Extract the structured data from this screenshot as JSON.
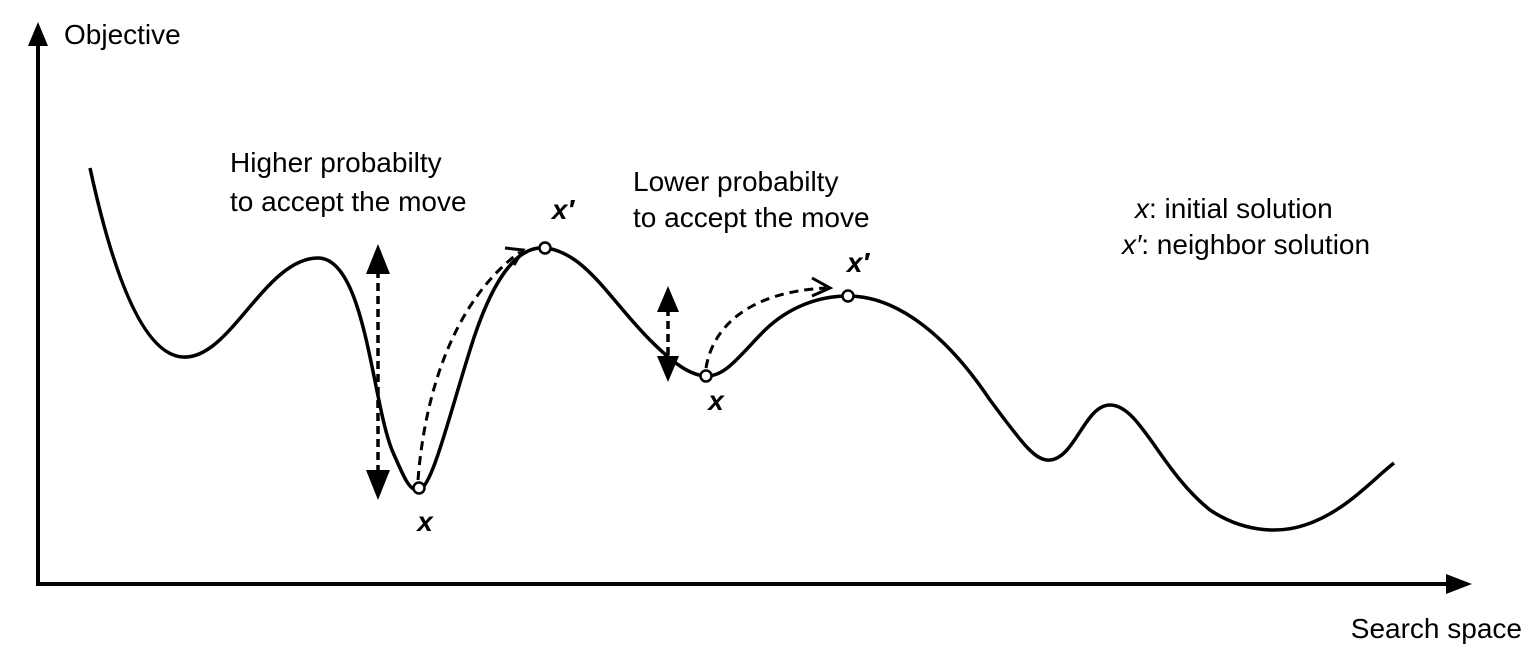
{
  "axes": {
    "y_label": "Objective",
    "x_label": "Search space"
  },
  "annotations": {
    "left_line1": "Higher probabilty",
    "left_line2": "to accept the move",
    "right_line1": "Lower probabilty",
    "right_line2": "to accept the move"
  },
  "points": {
    "x_left": "x",
    "xp_left": "x′",
    "x_right": "x",
    "xp_right": "x′"
  },
  "legend": {
    "x_symbol": "x",
    "x_text": ": initial solution",
    "xp_symbol": "x′",
    "xp_text": ": neighbor solution"
  },
  "colors": {
    "ink": "#000000",
    "background": "#ffffff"
  }
}
